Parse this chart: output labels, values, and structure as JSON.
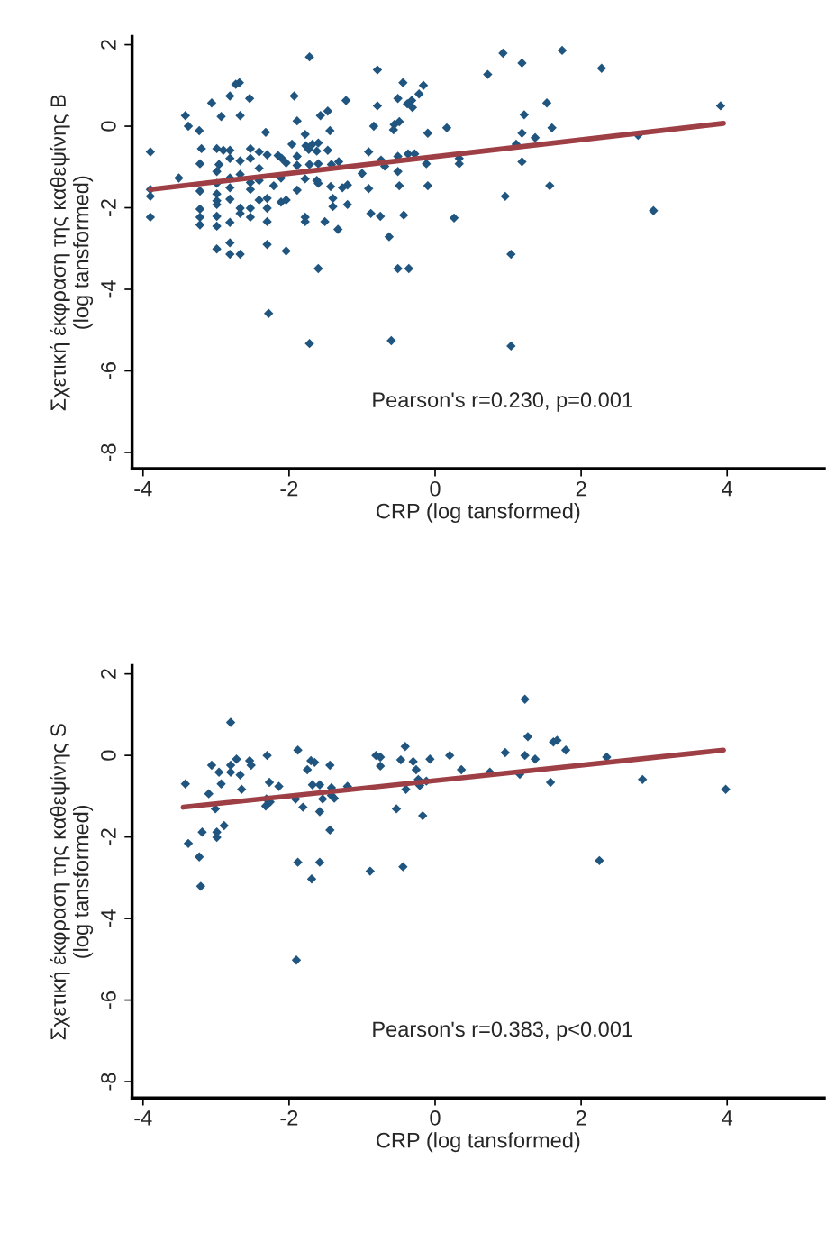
{
  "chart_data": [
    {
      "type": "scatter",
      "xlabel": "CRP (log tansformed)",
      "ylabel": "Σχετική έκφραση της καθεψίνης B\n(log tansformed)",
      "xlim": [
        -4.15,
        5.33
      ],
      "ylim": [
        -8.4,
        2.2
      ],
      "xticks": [
        -4,
        -2,
        0,
        2,
        4
      ],
      "yticks": [
        -8,
        -6,
        -4,
        -2,
        0,
        2
      ],
      "grid": false,
      "annotations": [
        "Pearson's r=0.230, p=0.001"
      ],
      "series": [
        {
          "marker": "diamond",
          "color": "#1f557f",
          "x": [
            -1.72,
            -0.79,
            -2.68,
            -2.73,
            -0.44,
            -0.16,
            -3.06,
            -2.81,
            -2.54,
            -1.93,
            -1.22,
            -0.79,
            -0.51,
            -0.32,
            -0.38,
            -0.31,
            -0.22,
            -3.42,
            -3.38,
            -3.23,
            -2.93,
            -2.67,
            -1.89,
            -1.57,
            -1.47,
            -2.32,
            -1.78,
            -1.44,
            -0.84,
            -0.56,
            -0.49,
            -0.57,
            -0.1,
            -3.9,
            -3.2,
            -2.99,
            -2.9,
            -2.81,
            -2.53,
            -2.41,
            -2.3,
            -1.96,
            -1.77,
            -1.68,
            -1.6,
            -1.73,
            -1.62,
            -1.47,
            -3.22,
            -2.96,
            -2.81,
            -2.67,
            -2.53,
            -2.41,
            -2.15,
            -2.1,
            -2.04,
            -1.89,
            -1.89,
            -1.72,
            -1.6,
            -1.42,
            -1.32,
            -0.91,
            -0.74,
            -0.69,
            -0.51,
            -0.51,
            -0.37,
            -0.28,
            -0.12,
            -3.51,
            -3.9,
            -3.9,
            -3.9,
            -3.22,
            -2.99,
            -2.99,
            -2.99,
            -2.99,
            -2.99,
            -2.81,
            -2.81,
            -2.81,
            -2.67,
            -2.53,
            -2.53,
            -2.41,
            -2.41,
            -2.3,
            -2.21,
            -2.11,
            -1.89,
            -1.78,
            -1.62,
            -1.6,
            -1.43,
            -1.27,
            -1.2,
            -1.4,
            -1.4,
            -1.2,
            -1.0,
            -0.91,
            -0.49,
            -0.1,
            -2.11,
            -2.04,
            -3.22,
            -3.22,
            -3.22,
            -2.99,
            -2.99,
            -2.81,
            -2.67,
            -2.67,
            -2.53,
            -2.53,
            -2.3,
            -2.3,
            -1.78,
            -1.78,
            -1.51,
            -1.33,
            -0.88,
            -0.75,
            -0.43,
            -0.63,
            -2.99,
            -2.81,
            -2.81,
            -2.67,
            -2.3,
            -2.04,
            -1.6,
            -0.51,
            -0.36,
            -2.28,
            -1.72,
            -0.6,
            0.93,
            1.74,
            1.19,
            0.72,
            2.28,
            1.53,
            3.91,
            1.22,
            0.16,
            1.6,
            1.19,
            1.37,
            1.11,
            2.78,
            0.33,
            0.33,
            1.19,
            1.57,
            0.96,
            0.26,
            2.99,
            1.04,
            1.04
          ],
          "values": [
            1.7,
            1.38,
            1.07,
            1.03,
            1.07,
            1.0,
            0.57,
            0.74,
            0.68,
            0.74,
            0.63,
            0.5,
            0.68,
            0.63,
            0.55,
            0.46,
            0.79,
            0.26,
            0.0,
            -0.11,
            0.24,
            0.26,
            0.13,
            0.26,
            0.37,
            -0.15,
            -0.2,
            -0.11,
            0.0,
            0.04,
            0.11,
            -0.09,
            -0.17,
            -0.63,
            -0.55,
            -0.55,
            -0.59,
            -0.59,
            -0.55,
            -0.63,
            -0.7,
            -0.44,
            -0.48,
            -0.44,
            -0.41,
            -0.57,
            -0.61,
            -0.59,
            -0.92,
            -0.94,
            -0.79,
            -0.85,
            -0.79,
            -1.03,
            -0.72,
            -0.79,
            -0.9,
            -0.74,
            -0.96,
            -0.94,
            -0.92,
            -0.94,
            -0.87,
            -0.63,
            -0.83,
            -0.98,
            -0.74,
            -1.11,
            -0.68,
            -0.68,
            -0.92,
            -1.27,
            -1.55,
            -1.72,
            -2.23,
            -1.59,
            -1.11,
            -1.4,
            -1.66,
            -1.83,
            -1.92,
            -1.27,
            -1.51,
            -1.79,
            -1.18,
            -1.38,
            -1.55,
            -1.33,
            -1.81,
            -1.77,
            -1.46,
            -1.27,
            -1.57,
            -1.29,
            -1.33,
            -1.4,
            -1.48,
            -1.51,
            -1.44,
            -1.77,
            -1.97,
            -1.92,
            -1.16,
            -1.53,
            -1.46,
            -1.46,
            -1.86,
            -1.81,
            -2.03,
            -2.23,
            -2.42,
            -2.21,
            -2.45,
            -2.36,
            -2.01,
            -2.14,
            -2.01,
            -2.23,
            -2.01,
            -2.34,
            -2.23,
            -2.34,
            -2.34,
            -2.53,
            -2.14,
            -2.21,
            -2.18,
            -2.71,
            -3.01,
            -2.86,
            -3.14,
            -3.14,
            -2.9,
            -3.06,
            -3.49,
            -3.49,
            -3.49,
            -4.59,
            -5.33,
            -5.26,
            1.79,
            1.86,
            1.55,
            1.27,
            1.42,
            0.57,
            0.5,
            0.28,
            -0.04,
            -0.04,
            -0.17,
            -0.28,
            -0.44,
            -0.22,
            -0.79,
            -0.92,
            -0.87,
            -1.46,
            -1.72,
            -2.25,
            -2.07,
            -3.14,
            -5.39
          ]
        },
        {
          "type": "line",
          "color": "#9e3f45",
          "x": [
            -3.9,
            3.95
          ],
          "values": [
            -1.55,
            0.07
          ]
        }
      ]
    },
    {
      "type": "scatter",
      "xlabel": "CRP (log tansformed)",
      "ylabel": "Σχετική έκφραση της καθεψίνης S\n(log tansformed)",
      "xlim": [
        -4.15,
        5.33
      ],
      "ylim": [
        -8.4,
        2.2
      ],
      "xticks": [
        -4,
        -2,
        0,
        2,
        4
      ],
      "yticks": [
        -8,
        -6,
        -4,
        -2,
        0,
        2
      ],
      "grid": false,
      "annotations": [
        "Pearson's r=0.383, p<0.001"
      ],
      "series": [
        {
          "marker": "diamond",
          "color": "#1f557f",
          "x": [
            1.23,
            -2.8,
            1.27,
            -0.41,
            1.62,
            1.67,
            1.79,
            -1.88,
            -2.3,
            -2.72,
            -3.06,
            -2.8,
            -2.54,
            -2.52,
            -1.7,
            -1.65,
            -1.44,
            -0.81,
            -0.75,
            -0.75,
            -0.47,
            -0.3,
            -0.07,
            0.2,
            0.36,
            -0.26,
            0.96,
            1.23,
            1.37,
            0.75,
            1.16,
            2.35,
            -2.96,
            -2.8,
            -2.67,
            -1.75,
            -3.42,
            -2.93,
            -2.27,
            -2.14,
            -2.65,
            -1.68,
            -1.58,
            -1.42,
            -1.2,
            -0.23,
            -0.12,
            -0.21,
            -0.4,
            1.58,
            2.84,
            3.98,
            -3.1,
            -2.31,
            -2.32,
            -2.26,
            -1.91,
            -1.81,
            -1.54,
            -1.42,
            -1.38,
            -1.58,
            -3.01,
            -0.53,
            -0.17,
            -2.89,
            -3.19,
            -2.99,
            -2.99,
            -1.44,
            -3.38,
            -3.23,
            -3.21,
            -1.88,
            -1.58,
            -1.69,
            -0.89,
            -0.44,
            2.25,
            -1.9
          ],
          "values": [
            1.38,
            0.81,
            0.46,
            0.22,
            0.33,
            0.37,
            0.13,
            0.13,
            0.0,
            -0.09,
            -0.24,
            -0.24,
            -0.13,
            -0.24,
            -0.13,
            -0.17,
            -0.24,
            0.0,
            -0.04,
            -0.26,
            -0.11,
            -0.15,
            -0.09,
            0.0,
            -0.35,
            -0.35,
            0.07,
            0.0,
            -0.09,
            -0.41,
            -0.46,
            -0.04,
            -0.41,
            -0.41,
            -0.48,
            -0.35,
            -0.7,
            -0.7,
            -0.66,
            -0.76,
            -0.83,
            -0.72,
            -0.72,
            -0.79,
            -0.76,
            -0.59,
            -0.63,
            -0.74,
            -0.83,
            -0.66,
            -0.59,
            -0.83,
            -0.94,
            -1.07,
            -1.24,
            -1.14,
            -1.07,
            -1.27,
            -1.07,
            -0.98,
            -1.05,
            -1.38,
            -1.31,
            -1.31,
            -1.48,
            -1.72,
            -1.88,
            -1.88,
            -2.01,
            -1.83,
            -2.16,
            -2.49,
            -3.21,
            -2.62,
            -2.62,
            -3.03,
            -2.84,
            -2.73,
            -2.58,
            -5.02
          ]
        },
        {
          "type": "line",
          "color": "#9e3f45",
          "x": [
            -3.45,
            3.95
          ],
          "values": [
            -1.27,
            0.13
          ]
        }
      ]
    }
  ]
}
